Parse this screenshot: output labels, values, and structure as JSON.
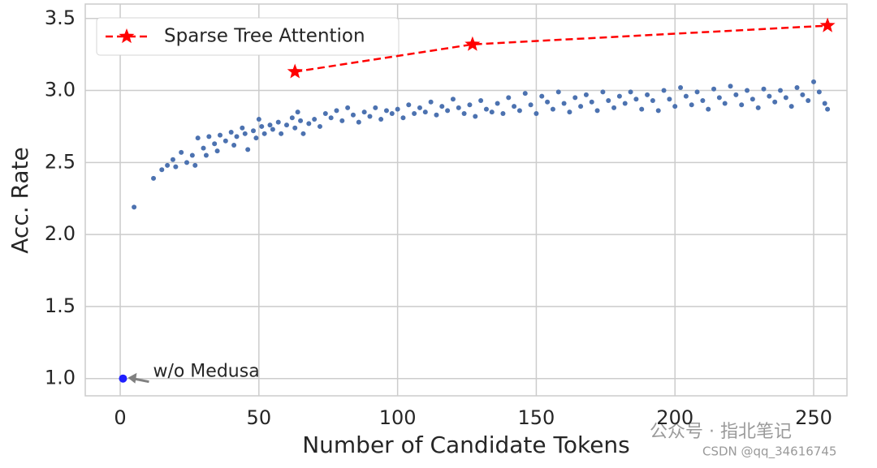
{
  "chart_data": {
    "type": "scatter",
    "xlabel": "Number of Candidate Tokens",
    "ylabel": "Acc. Rate",
    "xlim": [
      -12.6,
      262
    ],
    "ylim": [
      0.88,
      3.6
    ],
    "xticks": [
      0,
      50,
      100,
      150,
      200,
      250
    ],
    "yticks": [
      {
        "value": 1.0,
        "label": "1.0"
      },
      1.5,
      {
        "value": 2.0,
        "label": "2.0"
      },
      2.5,
      {
        "value": 3.0,
        "label": "3.0"
      },
      3.5
    ],
    "grid": true,
    "legend": "upper left",
    "series": [
      {
        "type": "scatter",
        "color": "#4c72b0",
        "x": [
          5,
          12,
          15,
          17,
          19,
          20,
          22,
          24,
          26,
          27,
          28,
          30,
          31,
          32,
          34,
          35,
          36,
          38,
          40,
          41,
          42,
          44,
          45,
          46,
          48,
          49,
          50,
          51,
          52,
          54,
          55,
          57,
          58,
          60,
          62,
          63,
          64,
          65,
          66,
          68,
          70,
          72,
          74,
          76,
          78,
          80,
          82,
          84,
          86,
          88,
          90,
          92,
          94,
          96,
          98,
          100,
          102,
          104,
          106,
          108,
          110,
          112,
          114,
          116,
          118,
          120,
          122,
          124,
          126,
          128,
          130,
          132,
          134,
          136,
          138,
          140,
          142,
          144,
          146,
          148,
          150,
          152,
          154,
          156,
          158,
          160,
          162,
          164,
          166,
          168,
          170,
          172,
          174,
          176,
          178,
          180,
          182,
          184,
          186,
          188,
          190,
          192,
          194,
          196,
          198,
          200,
          202,
          204,
          206,
          208,
          210,
          212,
          214,
          216,
          218,
          220,
          222,
          224,
          226,
          228,
          230,
          232,
          234,
          236,
          238,
          240,
          242,
          244,
          246,
          248,
          250,
          252,
          254,
          255
        ],
        "values": [
          2.19,
          2.39,
          2.45,
          2.48,
          2.52,
          2.47,
          2.57,
          2.5,
          2.55,
          2.48,
          2.67,
          2.6,
          2.55,
          2.68,
          2.63,
          2.58,
          2.69,
          2.65,
          2.71,
          2.62,
          2.68,
          2.74,
          2.7,
          2.59,
          2.72,
          2.67,
          2.8,
          2.75,
          2.7,
          2.76,
          2.73,
          2.78,
          2.7,
          2.76,
          2.81,
          2.74,
          2.85,
          2.79,
          2.7,
          2.77,
          2.8,
          2.75,
          2.84,
          2.81,
          2.86,
          2.79,
          2.88,
          2.83,
          2.78,
          2.85,
          2.82,
          2.88,
          2.8,
          2.86,
          2.84,
          2.87,
          2.81,
          2.9,
          2.84,
          2.88,
          2.85,
          2.92,
          2.83,
          2.89,
          2.86,
          2.94,
          2.88,
          2.84,
          2.9,
          2.82,
          2.93,
          2.87,
          2.85,
          2.91,
          2.84,
          2.95,
          2.89,
          2.86,
          2.98,
          2.9,
          2.84,
          2.96,
          2.92,
          2.87,
          2.99,
          2.91,
          2.85,
          2.95,
          2.89,
          2.97,
          2.92,
          2.86,
          2.99,
          2.93,
          2.88,
          2.96,
          2.91,
          2.99,
          2.94,
          2.87,
          2.97,
          2.93,
          2.86,
          3.0,
          2.94,
          2.89,
          3.02,
          2.96,
          2.9,
          2.99,
          2.93,
          2.87,
          3.01,
          2.95,
          2.91,
          3.03,
          2.97,
          2.9,
          3.0,
          2.94,
          2.88,
          3.01,
          2.96,
          2.92,
          3.0,
          2.95,
          2.89,
          3.02,
          2.97,
          2.93,
          3.06,
          2.99,
          2.91,
          2.87
        ]
      },
      {
        "type": "line",
        "name": "Sparse Tree Attention",
        "color": "#ff0000",
        "marker": "star",
        "x": [
          63,
          127,
          255
        ],
        "values": [
          3.13,
          3.32,
          3.45
        ]
      }
    ],
    "annotations": [
      {
        "text": "w/o Medusa",
        "x": 1,
        "y": 1.0,
        "color": "#1f1fff"
      }
    ],
    "watermark": [
      "公众号 · 指北笔记",
      "CSDN @qq_34616745"
    ]
  }
}
